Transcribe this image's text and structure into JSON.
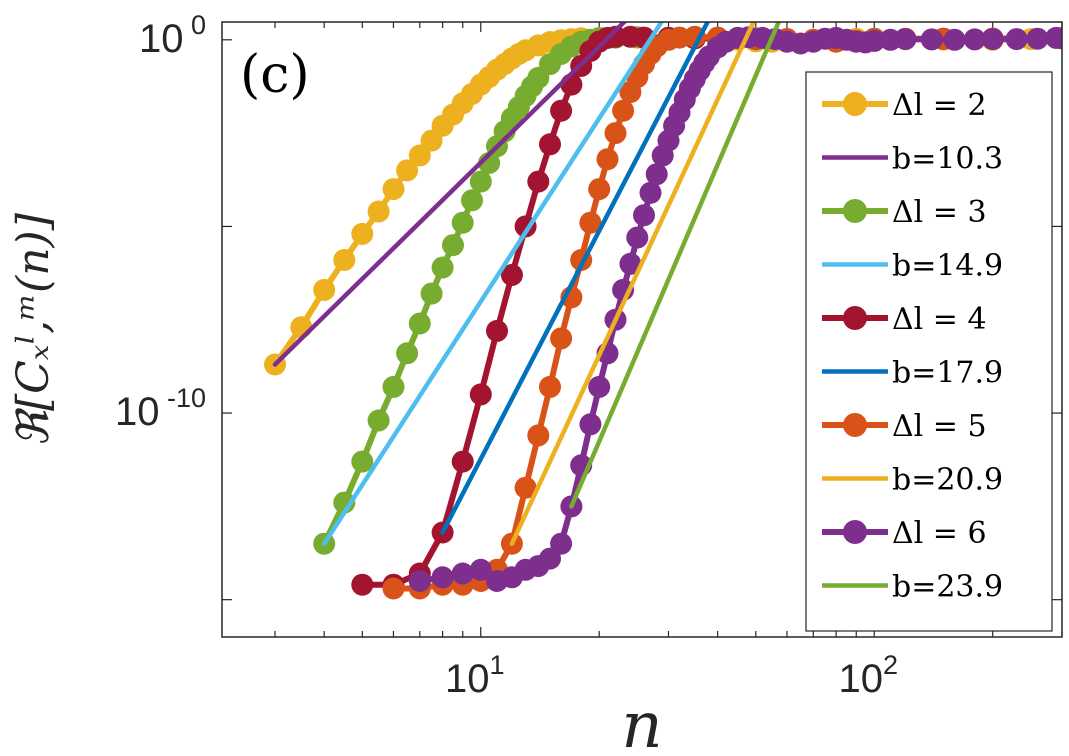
{
  "chart_data": {
    "type": "line",
    "panel_label": "(c)",
    "xlabel": "n",
    "ylabel": "ℜ[Cₓˡ,ᵐ(n)]",
    "x_scale": "log",
    "y_scale": "log",
    "xlim": [
      2.2,
      300
    ],
    "ylim": [
      1e-16,
      3
    ],
    "x_ticks": [
      {
        "value": 10,
        "base": "10",
        "exp": "1"
      },
      {
        "value": 100,
        "base": "10",
        "exp": "2"
      }
    ],
    "y_ticks": [
      {
        "value": 1,
        "base": "10",
        "exp": "0"
      },
      {
        "value": 1e-10,
        "base": "10",
        "exp": "-10"
      }
    ],
    "legend_position": "right",
    "series": [
      {
        "name": "Δl = 2",
        "color": "#EDB120",
        "markers": true,
        "points": [
          [
            3,
            -8.7
          ],
          [
            3.5,
            -7.7
          ],
          [
            4,
            -6.7
          ],
          [
            4.5,
            -5.9
          ],
          [
            5,
            -5.2
          ],
          [
            5.5,
            -4.6
          ],
          [
            6,
            -4.0
          ],
          [
            6.5,
            -3.5
          ],
          [
            7,
            -3.1
          ],
          [
            7.5,
            -2.7
          ],
          [
            8,
            -2.3
          ],
          [
            8.5,
            -2.0
          ],
          [
            9,
            -1.7
          ],
          [
            9.5,
            -1.45
          ],
          [
            10,
            -1.2
          ],
          [
            10.5,
            -1.0
          ],
          [
            11,
            -0.8
          ],
          [
            11.5,
            -0.65
          ],
          [
            12,
            -0.5
          ],
          [
            12.5,
            -0.38
          ],
          [
            13,
            -0.28
          ],
          [
            14,
            -0.15
          ],
          [
            15,
            -0.06
          ],
          [
            16,
            -0.01
          ],
          [
            17,
            0.02
          ],
          [
            18,
            0.04
          ],
          [
            20,
            0.05
          ],
          [
            22,
            0.06
          ],
          [
            25,
            0.06
          ],
          [
            30,
            0.05
          ],
          [
            35,
            0.04
          ],
          [
            40,
            0.02
          ],
          [
            45,
            0.0
          ],
          [
            50,
            -0.04
          ],
          [
            55,
            -0.05
          ],
          [
            60,
            -0.03
          ],
          [
            70,
            0.0
          ],
          [
            80,
            0.02
          ],
          [
            90,
            0.03
          ],
          [
            100,
            0.03
          ],
          [
            120,
            0.02
          ],
          [
            150,
            0.01
          ],
          [
            200,
            0.0
          ],
          [
            250,
            0.02
          ],
          [
            300,
            0.04
          ]
        ]
      },
      {
        "name": "b=10.3",
        "color": "#7E2F8E",
        "markers": false,
        "points": [
          [
            3,
            -8.7
          ],
          [
            26,
            1.0
          ]
        ]
      },
      {
        "name": "Δl = 3",
        "color": "#77AC30",
        "markers": true,
        "points": [
          [
            4,
            -13.5
          ],
          [
            4.5,
            -12.4
          ],
          [
            5,
            -11.3
          ],
          [
            5.5,
            -10.2
          ],
          [
            6,
            -9.3
          ],
          [
            6.5,
            -8.4
          ],
          [
            7,
            -7.6
          ],
          [
            7.5,
            -6.8
          ],
          [
            8,
            -6.1
          ],
          [
            8.5,
            -5.5
          ],
          [
            9,
            -4.9
          ],
          [
            9.5,
            -4.3
          ],
          [
            10,
            -3.8
          ],
          [
            10.5,
            -3.3
          ],
          [
            11,
            -2.85
          ],
          [
            11.5,
            -2.45
          ],
          [
            12,
            -2.1
          ],
          [
            12.5,
            -1.8
          ],
          [
            13,
            -1.5
          ],
          [
            13.5,
            -1.25
          ],
          [
            14,
            -1.02
          ],
          [
            15,
            -0.65
          ],
          [
            16,
            -0.38
          ],
          [
            17,
            -0.18
          ],
          [
            18,
            -0.05
          ],
          [
            19,
            0.0
          ],
          [
            20,
            0.04
          ],
          [
            22,
            0.06
          ],
          [
            25,
            0.07
          ],
          [
            30,
            0.06
          ],
          [
            35,
            0.05
          ],
          [
            40,
            0.04
          ],
          [
            50,
            0.02
          ],
          [
            60,
            0.0
          ],
          [
            80,
            0.02
          ],
          [
            100,
            0.03
          ],
          [
            150,
            0.02
          ],
          [
            200,
            0.03
          ],
          [
            300,
            0.04
          ]
        ]
      },
      {
        "name": "b=14.9",
        "color": "#4DBEEE",
        "markers": false,
        "points": [
          [
            4,
            -13.5
          ],
          [
            31,
            1.0
          ]
        ]
      },
      {
        "name": "Δl = 4",
        "color": "#A2142F",
        "markers": true,
        "points": [
          [
            5,
            -14.6
          ],
          [
            6,
            -14.6
          ],
          [
            7,
            -14.3
          ],
          [
            8,
            -13.2
          ],
          [
            9,
            -11.3
          ],
          [
            10,
            -9.5
          ],
          [
            11,
            -7.8
          ],
          [
            12,
            -6.3
          ],
          [
            13,
            -5.0
          ],
          [
            14,
            -3.8
          ],
          [
            15,
            -2.8
          ],
          [
            16,
            -1.9
          ],
          [
            17,
            -1.2
          ],
          [
            18,
            -0.7
          ],
          [
            19,
            -0.3
          ],
          [
            20,
            -0.05
          ],
          [
            21,
            0.05
          ],
          [
            22,
            0.08
          ],
          [
            24,
            0.08
          ],
          [
            26,
            0.06
          ],
          [
            30,
            0.05
          ],
          [
            35,
            0.04
          ],
          [
            40,
            0.04
          ],
          [
            50,
            0.03
          ],
          [
            60,
            0.02
          ],
          [
            80,
            0.0
          ],
          [
            100,
            0.02
          ],
          [
            150,
            0.03
          ],
          [
            200,
            0.03
          ],
          [
            300,
            0.04
          ]
        ]
      },
      {
        "name": "b=17.9",
        "color": "#0072BD",
        "markers": false,
        "points": [
          [
            8,
            -13.2
          ],
          [
            40,
            1.0
          ]
        ]
      },
      {
        "name": "Δl = 5",
        "color": "#D95319",
        "markers": true,
        "points": [
          [
            6,
            -14.7
          ],
          [
            7,
            -14.7
          ],
          [
            8,
            -14.6
          ],
          [
            9,
            -14.6
          ],
          [
            10,
            -14.5
          ],
          [
            11,
            -14.2
          ],
          [
            12,
            -13.5
          ],
          [
            13,
            -12.0
          ],
          [
            14,
            -10.6
          ],
          [
            15,
            -9.3
          ],
          [
            16,
            -8.0
          ],
          [
            17,
            -6.9
          ],
          [
            18,
            -5.9
          ],
          [
            19,
            -4.9
          ],
          [
            20,
            -4.0
          ],
          [
            21,
            -3.2
          ],
          [
            22,
            -2.5
          ],
          [
            23,
            -1.9
          ],
          [
            24,
            -1.4
          ],
          [
            25,
            -1.0
          ],
          [
            26,
            -0.65
          ],
          [
            27,
            -0.38
          ],
          [
            28,
            -0.18
          ],
          [
            30,
            0.0
          ],
          [
            32,
            0.06
          ],
          [
            35,
            0.08
          ],
          [
            40,
            0.06
          ],
          [
            45,
            0.05
          ],
          [
            50,
            0.04
          ],
          [
            60,
            0.02
          ],
          [
            70,
            0.0
          ],
          [
            80,
            -0.05
          ],
          [
            90,
            -0.02
          ],
          [
            100,
            0.02
          ],
          [
            120,
            0.03
          ],
          [
            150,
            0.02
          ],
          [
            200,
            0.03
          ],
          [
            300,
            0.05
          ]
        ]
      },
      {
        "name": "b=20.9",
        "color": "#EDB120",
        "markers": false,
        "points": [
          [
            12,
            -13.5
          ],
          [
            52,
            1.0
          ]
        ]
      },
      {
        "name": "Δl = 6",
        "color": "#7E2F8E",
        "markers": true,
        "points": [
          [
            7,
            -14.5
          ],
          [
            8,
            -14.4
          ],
          [
            9,
            -14.3
          ],
          [
            10,
            -14.2
          ],
          [
            11,
            -14.5
          ],
          [
            12,
            -14.4
          ],
          [
            13,
            -14.2
          ],
          [
            14,
            -14.1
          ],
          [
            15,
            -13.9
          ],
          [
            16,
            -13.5
          ],
          [
            17,
            -12.5
          ],
          [
            18,
            -11.4
          ],
          [
            19,
            -10.3
          ],
          [
            20,
            -9.3
          ],
          [
            21,
            -8.4
          ],
          [
            22,
            -7.5
          ],
          [
            23,
            -6.7
          ],
          [
            24,
            -6.0
          ],
          [
            25,
            -5.3
          ],
          [
            26,
            -4.7
          ],
          [
            27,
            -4.1
          ],
          [
            28,
            -3.6
          ],
          [
            29,
            -3.1
          ],
          [
            30,
            -2.7
          ],
          [
            31,
            -2.3
          ],
          [
            32,
            -1.95
          ],
          [
            33,
            -1.6
          ],
          [
            34,
            -1.3
          ],
          [
            35,
            -1.05
          ],
          [
            36,
            -0.82
          ],
          [
            37,
            -0.62
          ],
          [
            38,
            -0.45
          ],
          [
            40,
            -0.2
          ],
          [
            42,
            -0.05
          ],
          [
            45,
            0.05
          ],
          [
            48,
            0.07
          ],
          [
            52,
            0.05
          ],
          [
            56,
            0.02
          ],
          [
            60,
            -0.05
          ],
          [
            65,
            -0.1
          ],
          [
            70,
            -0.05
          ],
          [
            75,
            0.03
          ],
          [
            80,
            0.05
          ],
          [
            85,
            0.0
          ],
          [
            90,
            -0.05
          ],
          [
            95,
            -0.07
          ],
          [
            100,
            -0.03
          ],
          [
            110,
            0.0
          ],
          [
            120,
            0.02
          ],
          [
            140,
            0.01
          ],
          [
            160,
            0.0
          ],
          [
            180,
            0.01
          ],
          [
            200,
            0.02
          ],
          [
            230,
            0.02
          ],
          [
            260,
            0.03
          ],
          [
            290,
            0.05
          ]
        ]
      },
      {
        "name": "b=23.9",
        "color": "#77AC30",
        "markers": false,
        "points": [
          [
            17,
            -12.5
          ],
          [
            60,
            1.0
          ]
        ]
      }
    ]
  }
}
